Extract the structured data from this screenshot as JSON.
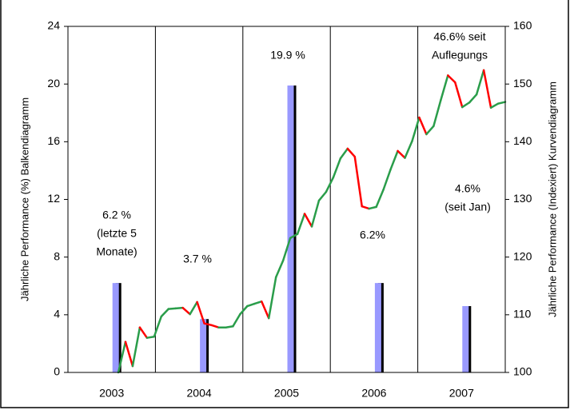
{
  "chart_data": {
    "type": "bar",
    "categories": [
      "2003",
      "2004",
      "2005",
      "2006",
      "2007"
    ],
    "values": [
      6.2,
      3.7,
      19.9,
      6.2,
      4.6
    ],
    "color": "#9999ff",
    "shadow_color": "#000000",
    "ylim": [
      0,
      24
    ],
    "yticks": [
      0,
      4,
      8,
      12,
      16,
      20,
      24
    ],
    "y2lim": [
      100,
      160
    ],
    "y2ticks": [
      100,
      110,
      120,
      130,
      140,
      150,
      160
    ],
    "ylabel": "Jährliche Performance (%) Balkendiagramm",
    "y2label": "Jährliche Performance (Indexiert) Kurvendiagramm",
    "line": {
      "axis": "y2",
      "up_color": "#2a9d4a",
      "down_color": "#ff0000",
      "values": [
        100,
        105.3,
        101.1,
        107.8,
        106,
        106.2,
        109.7,
        111,
        111.1,
        111.2,
        110.1,
        112.2,
        108.5,
        108.2,
        107.8,
        107.8,
        108,
        110.1,
        111.5,
        111.9,
        112.3,
        109.4,
        116.5,
        119.4,
        123.3,
        124,
        127.5,
        125.3,
        129.8,
        131.3,
        133.8,
        137.1,
        138.8,
        137.4,
        128.8,
        128.4,
        128.7,
        131.7,
        135.2,
        138.4,
        137.2,
        140.1,
        144.2,
        141.3,
        142.7,
        147.2,
        151.5,
        150.3,
        146,
        146.8,
        148.2,
        152.4,
        145.9,
        146.6,
        146.9
      ]
    },
    "annotations": [
      {
        "lines": [
          "6.2 %",
          "(letzte 5",
          "Monate)"
        ]
      },
      {
        "lines": [
          "3.7 %"
        ]
      },
      {
        "lines": [
          "19.9 %"
        ]
      },
      {
        "lines": [
          "6.2%"
        ]
      },
      {
        "lines": [
          "4.6%",
          "(seit  Jan)"
        ]
      },
      {
        "lines": [
          "46.6% seit",
          "Auflegungs"
        ]
      }
    ]
  }
}
